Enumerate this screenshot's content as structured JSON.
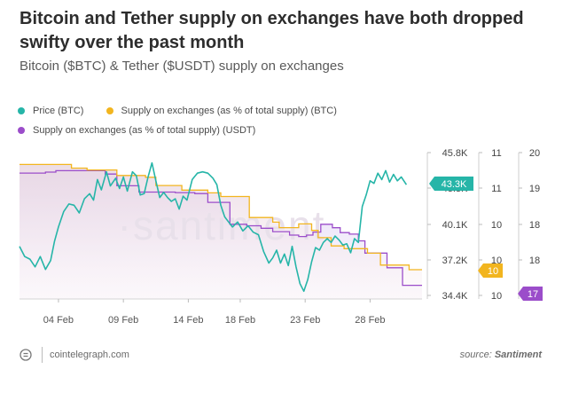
{
  "title": "Bitcoin and Tether supply on exchanges have both dropped swifty over the past month",
  "subtitle": "Bitcoin ($BTC) & Tether ($USDT) supply on exchanges",
  "legend": [
    {
      "label": "Price (BTC)",
      "color": "#26b5a8"
    },
    {
      "label": "Supply on exchanges (as % of total supply) (BTC)",
      "color": "#f2b51f"
    },
    {
      "label": "Supply on exchanges (as % of total supply) (USDT)",
      "color": "#9b4dca"
    }
  ],
  "watermark": "santiment",
  "footer": {
    "site": "cointelegraph.com",
    "source_prefix": "source: ",
    "source_name": "Santiment"
  },
  "chart_data": {
    "type": "line",
    "x_ticks": [
      "04 Feb",
      "09 Feb",
      "14 Feb",
      "18 Feb",
      "23 Feb",
      "28 Feb"
    ],
    "x_tick_days": [
      4,
      9,
      14,
      18,
      23,
      28
    ],
    "x_range_days": [
      1,
      32
    ],
    "axes": {
      "price": {
        "ticks": [
          "45.8K",
          "43.3K",
          "40.1K",
          "37.2K",
          "34.4K"
        ],
        "range": [
          34400,
          45800
        ],
        "current_label": "43.3K",
        "color": "#26b5a8"
      },
      "btc_supply": {
        "ticks": [
          "11",
          "11",
          "10",
          "10",
          "10"
        ],
        "current_label": "10",
        "color": "#f2b51f"
      },
      "usdt_supply": {
        "ticks": [
          "20",
          "19",
          "18",
          "18",
          "17"
        ],
        "current_label": "17",
        "color": "#9b4dca"
      }
    },
    "series": [
      {
        "name": "Price (BTC)",
        "color": "#26b5a8",
        "points": [
          [
            1,
            38500
          ],
          [
            1.4,
            37700
          ],
          [
            1.8,
            37500
          ],
          [
            2.2,
            36900
          ],
          [
            2.6,
            37700
          ],
          [
            3,
            36700
          ],
          [
            3.4,
            37400
          ],
          [
            3.7,
            38900
          ],
          [
            4,
            40000
          ],
          [
            4.4,
            41200
          ],
          [
            4.8,
            41800
          ],
          [
            5.2,
            41700
          ],
          [
            5.6,
            41100
          ],
          [
            6,
            42200
          ],
          [
            6.4,
            42600
          ],
          [
            6.7,
            42100
          ],
          [
            7,
            43700
          ],
          [
            7.3,
            42900
          ],
          [
            7.7,
            44300
          ],
          [
            8,
            43200
          ],
          [
            8.4,
            43800
          ],
          [
            8.7,
            43000
          ],
          [
            9,
            43900
          ],
          [
            9.3,
            42800
          ],
          [
            9.7,
            44300
          ],
          [
            10,
            44000
          ],
          [
            10.3,
            42500
          ],
          [
            10.6,
            42600
          ],
          [
            10.9,
            43900
          ],
          [
            11.2,
            45000
          ],
          [
            11.5,
            43600
          ],
          [
            11.8,
            42300
          ],
          [
            12.1,
            42700
          ],
          [
            12.4,
            42300
          ],
          [
            12.7,
            42000
          ],
          [
            13,
            42200
          ],
          [
            13.3,
            41400
          ],
          [
            13.6,
            42400
          ],
          [
            13.9,
            42100
          ],
          [
            14.3,
            43700
          ],
          [
            14.7,
            44200
          ],
          [
            15.1,
            44300
          ],
          [
            15.5,
            44200
          ],
          [
            15.9,
            43800
          ],
          [
            16.2,
            43300
          ],
          [
            16.5,
            41700
          ],
          [
            16.8,
            40800
          ],
          [
            17.1,
            40400
          ],
          [
            17.4,
            40000
          ],
          [
            17.8,
            40400
          ],
          [
            18.2,
            39700
          ],
          [
            18.6,
            40100
          ],
          [
            19,
            39600
          ],
          [
            19.4,
            39400
          ],
          [
            19.8,
            38100
          ],
          [
            20.2,
            37200
          ],
          [
            20.5,
            37600
          ],
          [
            20.8,
            38200
          ],
          [
            21.1,
            37200
          ],
          [
            21.4,
            37900
          ],
          [
            21.7,
            37000
          ],
          [
            22,
            38500
          ],
          [
            22.3,
            36900
          ],
          [
            22.6,
            35600
          ],
          [
            22.9,
            35000
          ],
          [
            23.2,
            35900
          ],
          [
            23.5,
            37300
          ],
          [
            23.8,
            38400
          ],
          [
            24.1,
            38200
          ],
          [
            24.4,
            38800
          ],
          [
            24.7,
            39100
          ],
          [
            25,
            38800
          ],
          [
            25.3,
            39300
          ],
          [
            25.6,
            39000
          ],
          [
            25.9,
            38600
          ],
          [
            26.2,
            38700
          ],
          [
            26.5,
            38000
          ],
          [
            26.8,
            39100
          ],
          [
            27.1,
            38800
          ],
          [
            27.4,
            41600
          ],
          [
            27.7,
            42500
          ],
          [
            28,
            43600
          ],
          [
            28.3,
            43400
          ],
          [
            28.6,
            44200
          ],
          [
            28.9,
            43700
          ],
          [
            29.2,
            44400
          ],
          [
            29.5,
            43500
          ],
          [
            29.8,
            44100
          ],
          [
            30.1,
            43600
          ],
          [
            30.4,
            43900
          ],
          [
            30.8,
            43300
          ]
        ]
      },
      {
        "name": "Supply on exchanges (as % of total supply) (BTC)",
        "color": "#f2b51f",
        "points": [
          [
            1,
            11.07
          ],
          [
            5,
            11.03
          ],
          [
            6.2,
            11.01
          ],
          [
            8.5,
            10.95
          ],
          [
            10.7,
            10.93
          ],
          [
            11.5,
            10.84
          ],
          [
            13.5,
            10.79
          ],
          [
            15.5,
            10.76
          ],
          [
            16.5,
            10.72
          ],
          [
            18.7,
            10.49
          ],
          [
            20.5,
            10.44
          ],
          [
            21,
            10.38
          ],
          [
            22.5,
            10.42
          ],
          [
            23.5,
            10.35
          ],
          [
            24,
            10.27
          ],
          [
            25,
            10.18
          ],
          [
            26,
            10.15
          ],
          [
            27.8,
            10.1
          ],
          [
            28.8,
            9.97
          ],
          [
            31,
            9.92
          ]
        ]
      },
      {
        "name": "Supply on exchanges (as % of total supply) (USDT)",
        "color": "#9b4dca",
        "points": [
          [
            1,
            19.58
          ],
          [
            3,
            19.6
          ],
          [
            3.8,
            19.63
          ],
          [
            7.6,
            19.56
          ],
          [
            8.5,
            19.32
          ],
          [
            10.2,
            19.19
          ],
          [
            13,
            19.18
          ],
          [
            14.5,
            19.16
          ],
          [
            15.5,
            18.98
          ],
          [
            17.2,
            18.53
          ],
          [
            18.5,
            18.5
          ],
          [
            19.6,
            18.45
          ],
          [
            20.5,
            18.38
          ],
          [
            21.8,
            18.31
          ],
          [
            22.5,
            18.28
          ],
          [
            23.1,
            18.31
          ],
          [
            23.6,
            18.37
          ],
          [
            24.2,
            18.53
          ],
          [
            25.1,
            18.46
          ],
          [
            25.7,
            18.36
          ],
          [
            26.4,
            18.33
          ],
          [
            27.1,
            18.19
          ],
          [
            27.6,
            17.94
          ],
          [
            29.3,
            17.64
          ],
          [
            30.5,
            17.28
          ],
          [
            31,
            17.28
          ]
        ]
      }
    ]
  }
}
